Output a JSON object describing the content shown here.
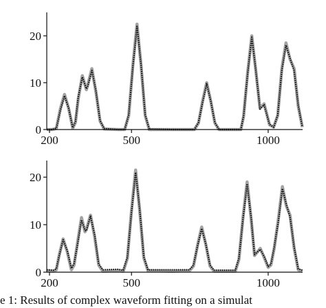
{
  "chart_data": [
    {
      "type": "line",
      "x": [
        190,
        210,
        225,
        240,
        255,
        270,
        285,
        295,
        305,
        320,
        335,
        340,
        355,
        370,
        385,
        400,
        450,
        475,
        490,
        505,
        520,
        535,
        550,
        565,
        650,
        730,
        745,
        760,
        775,
        790,
        805,
        820,
        900,
        910,
        925,
        940,
        955,
        970,
        985,
        1005,
        1020,
        1035,
        1050,
        1065,
        1080,
        1095,
        1110,
        1125
      ],
      "series": [
        {
          "color": "#a3a3a3",
          "style": "solid",
          "values": [
            0,
            0,
            0.2,
            4.5,
            7.5,
            4.5,
            0.3,
            1.5,
            6.5,
            11.5,
            8.5,
            9.5,
            13,
            8,
            1.8,
            0.1,
            0,
            0,
            3,
            13.7,
            22.5,
            13.7,
            3,
            0,
            0,
            0,
            1.4,
            6,
            10,
            6,
            1.4,
            0,
            0,
            2.8,
            12.2,
            20,
            12.5,
            4.5,
            5.5,
            1,
            0.5,
            3,
            13,
            18.5,
            15,
            13,
            5,
            0.5
          ]
        },
        {
          "color": "#111111",
          "style": "dotted",
          "values": [
            0,
            0,
            0.3,
            4.2,
            7.2,
            4.6,
            0.4,
            1.7,
            6.8,
            11.2,
            8.7,
            9.3,
            12.6,
            8.2,
            1.9,
            0.2,
            0,
            0,
            3.2,
            13.4,
            22,
            13.9,
            3.1,
            0.1,
            0,
            0,
            1.5,
            5.8,
            9.8,
            6.1,
            1.5,
            0,
            0,
            2.9,
            12,
            19.7,
            12.6,
            4.4,
            5.3,
            1.1,
            0.5,
            3.1,
            12.7,
            18,
            15.2,
            12.6,
            5.2,
            0.6
          ]
        }
      ],
      "xlim": [
        190,
        1126
      ],
      "xticks": [
        200,
        500,
        1000
      ],
      "ylim": [
        0,
        25
      ],
      "yticks": [
        0,
        10,
        20
      ]
    },
    {
      "type": "line",
      "x": [
        190,
        215,
        225,
        235,
        250,
        265,
        280,
        290,
        302,
        317,
        330,
        335,
        350,
        365,
        380,
        395,
        450,
        470,
        485,
        500,
        515,
        530,
        545,
        560,
        650,
        712,
        727,
        742,
        757,
        772,
        787,
        802,
        880,
        893,
        908,
        923,
        938,
        950,
        971,
        986,
        1000,
        1010,
        1022,
        1037,
        1052,
        1066,
        1080,
        1095,
        1110,
        1125
      ],
      "series": [
        {
          "color": "#a3a3a3",
          "style": "solid",
          "values": [
            0.3,
            0.2,
            0.5,
            3.5,
            7,
            4.3,
            0.5,
            1.5,
            6,
            11.5,
            8.5,
            9,
            12,
            7.5,
            1.5,
            0.2,
            0.3,
            0.2,
            2.9,
            13,
            21.5,
            13,
            3,
            0.3,
            0.2,
            0.3,
            1.3,
            5.8,
            9.5,
            5.8,
            1.3,
            0.2,
            0.2,
            2.7,
            11.6,
            19,
            11,
            3.5,
            5,
            3,
            1,
            1.5,
            5,
            11,
            18,
            14,
            12,
            5,
            0.5,
            0.2
          ]
        },
        {
          "color": "#111111",
          "style": "dotted",
          "values": [
            0.5,
            0.4,
            0.7,
            3.3,
            6.8,
            4.5,
            0.8,
            1.8,
            5.7,
            11,
            8.8,
            8.7,
            11.8,
            7.8,
            1.7,
            0.5,
            0.6,
            0.4,
            3.1,
            12.6,
            21,
            13.3,
            3.2,
            0.5,
            0.5,
            0.5,
            1.5,
            5.6,
            9.2,
            5.9,
            1.5,
            0.4,
            0.4,
            2.9,
            11.3,
            18.6,
            11.3,
            3.7,
            4.8,
            3.2,
            1.2,
            1.7,
            5.2,
            10.6,
            17.6,
            14.3,
            11.6,
            5.3,
            0.7,
            0.4
          ]
        }
      ],
      "xlim": [
        190,
        1126
      ],
      "xticks": [
        200,
        500,
        1000
      ],
      "ylim": [
        0,
        23.5
      ],
      "yticks": [
        0,
        10,
        20
      ]
    }
  ],
  "caption": "e 1: Results of complex waveform fitting on a simulat"
}
